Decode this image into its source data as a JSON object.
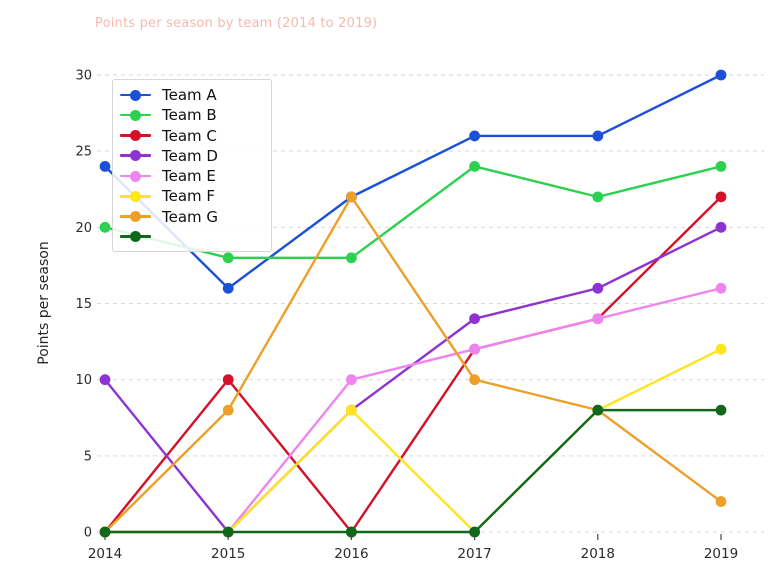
{
  "title": {
    "text": "Points per season by team (2014 to 2019)"
  },
  "chart_data": {
    "type": "line",
    "x": [
      2014,
      2015,
      2016,
      2017,
      2018,
      2019
    ],
    "xtick_labels": [
      "2014",
      "2015",
      "2016",
      "2017",
      "2018",
      "2019"
    ],
    "yticks": [
      0,
      5,
      10,
      15,
      20,
      25,
      30
    ],
    "ylim": [
      0,
      30
    ],
    "xlabel": "",
    "ylabel": "Points per season",
    "grid": "horizontal dashed",
    "legend_position": "upper left",
    "series": [
      {
        "name": "Team A",
        "color": "#1c50d8",
        "values": [
          24,
          16,
          22,
          26,
          26,
          30
        ]
      },
      {
        "name": "Team B",
        "color": "#2cd14f",
        "values": [
          20,
          18,
          18,
          24,
          22,
          24
        ]
      },
      {
        "name": "Team C",
        "color": "#d3122a",
        "values": [
          0,
          10,
          0,
          12,
          14,
          22
        ]
      },
      {
        "name": "Team D",
        "color": "#8d33d1",
        "values": [
          10,
          0,
          8,
          14,
          16,
          20
        ]
      },
      {
        "name": "Team E",
        "color": "#ee85ee",
        "values": [
          0,
          0,
          10,
          12,
          14,
          16
        ]
      },
      {
        "name": "Team F",
        "color": "#ffe41f",
        "values": [
          0,
          0,
          8,
          0,
          8,
          12
        ]
      },
      {
        "name": "Team G",
        "color": "#ee9f27",
        "values": [
          0,
          8,
          22,
          10,
          8,
          2
        ]
      },
      {
        "name": "",
        "color": "#10691a",
        "values": [
          0,
          0,
          0,
          0,
          8,
          8
        ]
      }
    ]
  },
  "legend": {
    "entries": [
      {
        "label": "Team A",
        "color": "#1c50d8"
      },
      {
        "label": "Team B",
        "color": "#2cd14f"
      },
      {
        "label": "Team C",
        "color": "#d3122a"
      },
      {
        "label": "Team D",
        "color": "#8d33d1"
      },
      {
        "label": "Team E",
        "color": "#ee85ee"
      },
      {
        "label": "Team F",
        "color": "#ffe41f"
      },
      {
        "label": "Team G",
        "color": "#ee9f27"
      },
      {
        "label": "",
        "color": "#10691a"
      }
    ]
  },
  "style": {
    "grid_color": "#d9d9d9",
    "tick_color": "#2b2b2b",
    "title_color": "#f6b9ab"
  }
}
